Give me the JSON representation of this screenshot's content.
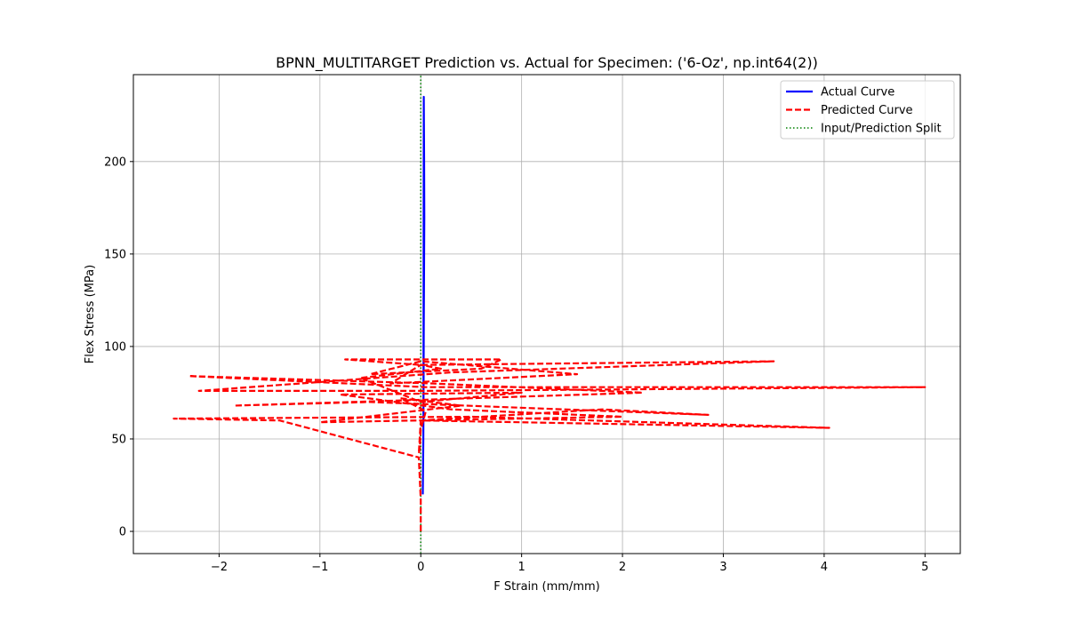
{
  "chart_data": {
    "type": "line",
    "title": "BPNN_MULTITARGET Prediction vs. Actual for Specimen: ('6-Oz', np.int64(2))",
    "xlabel": "F Strain (mm/mm)",
    "ylabel": "Flex Stress (MPa)",
    "xlim": [
      -2.85,
      5.35
    ],
    "ylim": [
      -12,
      247
    ],
    "xticks": [
      -2,
      -1,
      0,
      1,
      2,
      3,
      4,
      5
    ],
    "yticks": [
      0,
      50,
      100,
      150,
      200
    ],
    "xtick_labels": [
      "−2",
      "−1",
      "0",
      "1",
      "2",
      "3",
      "4",
      "5"
    ],
    "ytick_labels": [
      "0",
      "50",
      "100",
      "150",
      "200"
    ],
    "grid": true,
    "legend_position": "top-right",
    "series": [
      {
        "name": "Actual Curve",
        "color": "#0000ff",
        "style": "solid",
        "x": [
          0.02,
          0.025,
          0.028,
          0.03,
          0.032,
          0.035,
          0.033,
          0.03,
          0.028,
          0.026
        ],
        "y": [
          20,
          50,
          80,
          110,
          140,
          170,
          200,
          235,
          150,
          60
        ]
      },
      {
        "name": "Predicted Curve",
        "color": "#ff0000",
        "style": "dashed",
        "x": [
          0.0,
          0.0,
          0.0,
          -0.02,
          -1.4,
          -2.45,
          0.5,
          4.05,
          0.0,
          1.8,
          2.85,
          -0.5,
          -1.85,
          0.5,
          2.2,
          0.1,
          -2.3,
          0.05,
          5.0,
          0.0,
          -2.2,
          0.3,
          3.5,
          0.0,
          -0.75,
          0.8,
          0.6,
          -0.5,
          0.0,
          1.55,
          -0.3,
          0.0,
          0.2,
          -0.6,
          0.0,
          1.0,
          -0.8,
          0.3,
          2.0,
          -1.0,
          0.4,
          -0.2,
          0.05,
          0.0,
          -0.01,
          -0.02,
          0.0
        ],
        "y": [
          0,
          5,
          17,
          40,
          60,
          61,
          62,
          56,
          60,
          66,
          63,
          70,
          68,
          72,
          75,
          80,
          84,
          78,
          78,
          76,
          76,
          86,
          92,
          90,
          93,
          93,
          88,
          85,
          92,
          85,
          80,
          90,
          88,
          83,
          70,
          75,
          74,
          66,
          62,
          59,
          68,
          72,
          65,
          55,
          45,
          42,
          60
        ]
      },
      {
        "name": "Input/Prediction Split",
        "color": "#008000",
        "style": "dotted",
        "x": [
          0.0,
          0.0
        ],
        "y": [
          -12,
          247
        ]
      }
    ]
  }
}
